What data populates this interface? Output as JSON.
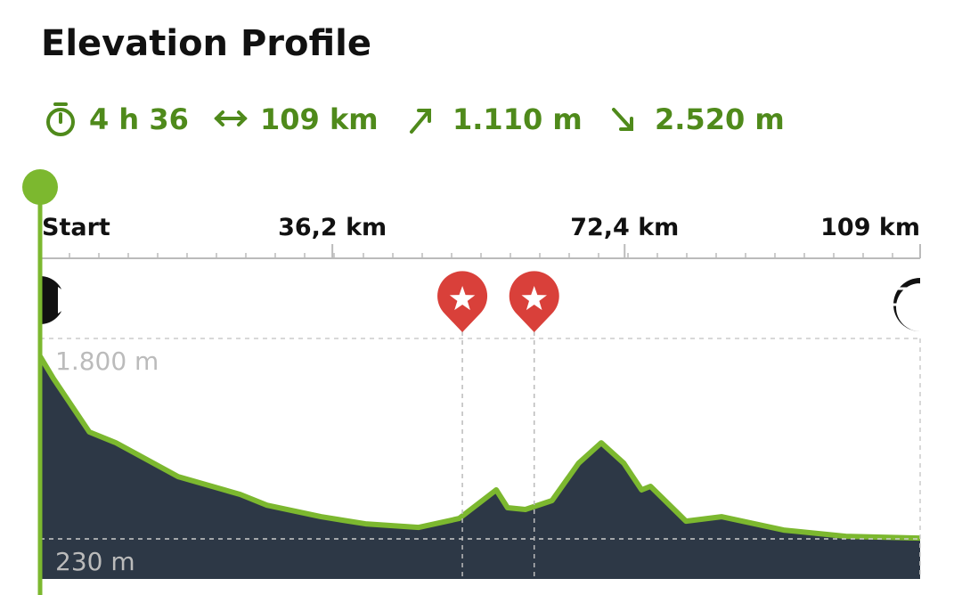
{
  "header": {
    "title": "Elevation Profile"
  },
  "stats": [
    "4 h 36",
    "109 km",
    "1.110 m",
    "2.520 m"
  ],
  "chart_data": {
    "type": "area",
    "x": [
      0,
      1.65,
      6.1,
      9.4,
      17.1,
      24.8,
      28.1,
      34.8,
      40.3,
      46.9,
      51.9,
      56.5,
      57.9,
      60.1,
      63.4,
      66.7,
      69.5,
      72.3,
      74.5,
      75.6,
      80.0,
      84.4,
      92.1,
      99.8,
      109
    ],
    "values": [
      1660,
      1486,
      1067,
      983,
      718,
      578,
      494,
      404,
      348,
      320,
      390,
      614,
      474,
      460,
      530,
      823,
      983,
      823,
      614,
      642,
      369,
      404,
      299,
      250,
      236
    ],
    "xlim": [
      0,
      109
    ],
    "xticks": [
      {
        "value": 0,
        "label": "Start"
      },
      {
        "value": 36.2,
        "label": "36,2 km"
      },
      {
        "value": 72.4,
        "label": "72,4 km"
      },
      {
        "value": 109,
        "label": "109 km"
      }
    ],
    "ylim": [
      -84,
      1800
    ],
    "yticks": [
      {
        "value": 1800,
        "label": "1.800 m"
      },
      {
        "value": 230,
        "label": "230 m"
      }
    ],
    "waypoints": [
      52.3,
      61.2
    ],
    "color": "#7cb82f",
    "fill": "#2d3846",
    "waypoint_color": "#d9403a",
    "grid": true
  }
}
